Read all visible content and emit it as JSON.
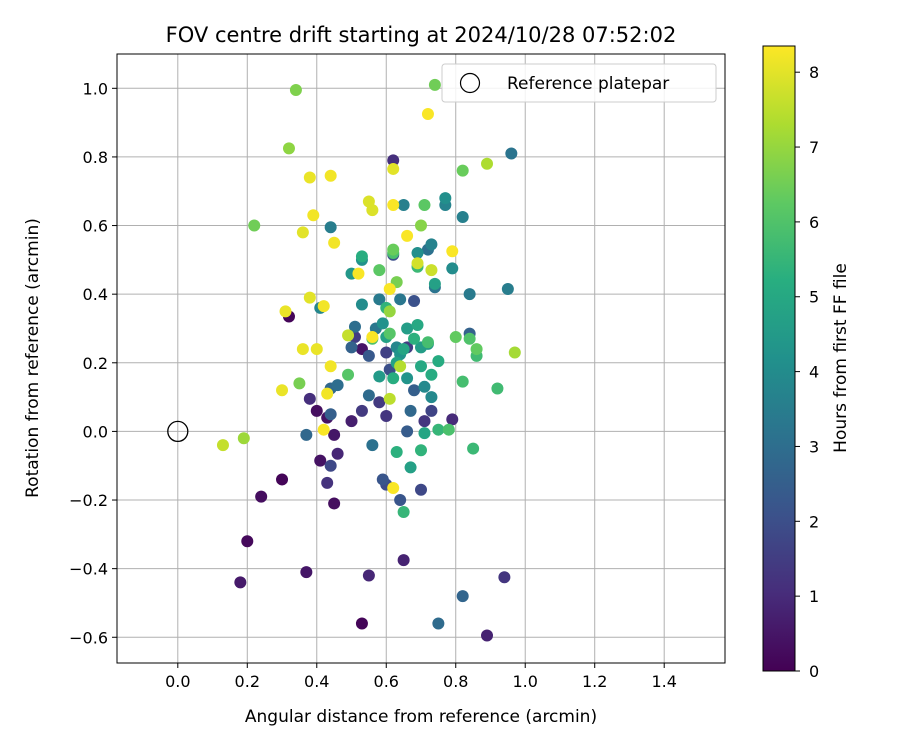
{
  "chart_data": {
    "type": "scatter",
    "title": "FOV centre drift starting at 2024/10/28 07:52:02",
    "xlabel": "Angular distance from reference (arcmin)",
    "ylabel": "Rotation from reference (arcmin)",
    "xlim": [
      -0.175,
      1.575
    ],
    "ylim": [
      -0.675,
      1.1
    ],
    "xticks": [
      0.0,
      0.2,
      0.4,
      0.6,
      0.8,
      1.0,
      1.2,
      1.4
    ],
    "yticks": [
      -0.6,
      -0.4,
      -0.2,
      0.0,
      0.2,
      0.4,
      0.6,
      0.8,
      1.0
    ],
    "xtick_labels": [
      "0.0",
      "0.2",
      "0.4",
      "0.6",
      "0.8",
      "1.0",
      "1.2",
      "1.4"
    ],
    "ytick_labels": [
      "−0.6",
      "−0.4",
      "−0.2",
      "0.0",
      "0.2",
      "0.4",
      "0.6",
      "0.8",
      "1.0"
    ],
    "grid": true,
    "legend": {
      "position": "top-right",
      "entries": [
        "Reference platepar"
      ]
    },
    "colorbar": {
      "label": "Hours from first FF file",
      "min": 0,
      "max": 8.35,
      "ticks": [
        0,
        1,
        2,
        3,
        4,
        5,
        6,
        7,
        8
      ],
      "tick_labels": [
        "0",
        "1",
        "2",
        "3",
        "4",
        "5",
        "6",
        "7",
        "8"
      ],
      "colormap": "viridis"
    },
    "reference_point": {
      "x": 0.0,
      "y": 0.0
    },
    "points": [
      {
        "x": 0.53,
        "y": -0.56,
        "h": 0.1
      },
      {
        "x": 0.32,
        "y": 0.335,
        "h": 0.1
      },
      {
        "x": 0.3,
        "y": -0.14,
        "h": 0.1
      },
      {
        "x": 0.2,
        "y": -0.32,
        "h": 0.2
      },
      {
        "x": 0.24,
        "y": -0.19,
        "h": 0.3
      },
      {
        "x": 0.4,
        "y": 0.06,
        "h": 0.3
      },
      {
        "x": 0.45,
        "y": -0.21,
        "h": 0.3
      },
      {
        "x": 0.41,
        "y": -0.085,
        "h": 0.4
      },
      {
        "x": 0.43,
        "y": 0.04,
        "h": 0.4
      },
      {
        "x": 0.45,
        "y": -0.01,
        "h": 0.5
      },
      {
        "x": 0.53,
        "y": 0.24,
        "h": 0.5
      },
      {
        "x": 0.37,
        "y": -0.41,
        "h": 0.5
      },
      {
        "x": 0.18,
        "y": -0.44,
        "h": 0.6
      },
      {
        "x": 0.5,
        "y": 0.03,
        "h": 0.7
      },
      {
        "x": 0.89,
        "y": -0.595,
        "h": 0.8
      },
      {
        "x": 0.65,
        "y": -0.375,
        "h": 0.8
      },
      {
        "x": 0.46,
        "y": -0.065,
        "h": 0.9
      },
      {
        "x": 0.55,
        "y": -0.42,
        "h": 0.9
      },
      {
        "x": 0.79,
        "y": 0.035,
        "h": 1.0
      },
      {
        "x": 0.62,
        "y": 0.79,
        "h": 1.1
      },
      {
        "x": 0.38,
        "y": 0.095,
        "h": 1.1
      },
      {
        "x": 0.43,
        "y": -0.15,
        "h": 1.2
      },
      {
        "x": 0.94,
        "y": -0.425,
        "h": 1.3
      },
      {
        "x": 0.6,
        "y": 0.045,
        "h": 1.3
      },
      {
        "x": 0.71,
        "y": 0.03,
        "h": 1.3
      },
      {
        "x": 0.53,
        "y": 0.06,
        "h": 1.4
      },
      {
        "x": 0.58,
        "y": 0.085,
        "h": 1.4
      },
      {
        "x": 0.66,
        "y": 0.245,
        "h": 1.5
      },
      {
        "x": 0.51,
        "y": 0.275,
        "h": 1.5
      },
      {
        "x": 0.6,
        "y": 0.23,
        "h": 1.6
      },
      {
        "x": 0.73,
        "y": 0.06,
        "h": 1.7
      },
      {
        "x": 0.44,
        "y": -0.1,
        "h": 1.8
      },
      {
        "x": 0.7,
        "y": -0.17,
        "h": 1.8
      },
      {
        "x": 0.6,
        "y": -0.155,
        "h": 1.9
      },
      {
        "x": 0.62,
        "y": 0.515,
        "h": 2.0
      },
      {
        "x": 0.61,
        "y": 0.18,
        "h": 2.0
      },
      {
        "x": 0.68,
        "y": 0.38,
        "h": 2.1
      },
      {
        "x": 0.64,
        "y": -0.2,
        "h": 2.2
      },
      {
        "x": 0.59,
        "y": -0.14,
        "h": 2.2
      },
      {
        "x": 0.55,
        "y": 0.22,
        "h": 2.3
      },
      {
        "x": 0.66,
        "y": 0.0,
        "h": 2.4
      },
      {
        "x": 0.44,
        "y": 0.05,
        "h": 2.5
      },
      {
        "x": 0.68,
        "y": 0.12,
        "h": 2.5
      },
      {
        "x": 0.5,
        "y": 0.245,
        "h": 2.6
      },
      {
        "x": 0.84,
        "y": 0.285,
        "h": 2.6
      },
      {
        "x": 0.82,
        "y": -0.48,
        "h": 2.7
      },
      {
        "x": 0.37,
        "y": -0.01,
        "h": 2.8
      },
      {
        "x": 0.44,
        "y": 0.125,
        "h": 2.8
      },
      {
        "x": 0.67,
        "y": 0.06,
        "h": 2.8
      },
      {
        "x": 0.55,
        "y": 0.105,
        "h": 2.9
      },
      {
        "x": 0.75,
        "y": -0.56,
        "h": 2.9
      },
      {
        "x": 0.46,
        "y": 0.135,
        "h": 3.0
      },
      {
        "x": 0.51,
        "y": 0.305,
        "h": 3.0
      },
      {
        "x": 0.72,
        "y": 0.53,
        "h": 3.1
      },
      {
        "x": 0.56,
        "y": -0.04,
        "h": 3.1
      },
      {
        "x": 0.74,
        "y": 0.42,
        "h": 3.2
      },
      {
        "x": 0.96,
        "y": 0.81,
        "h": 3.2
      },
      {
        "x": 0.57,
        "y": 0.3,
        "h": 3.3
      },
      {
        "x": 0.64,
        "y": 0.385,
        "h": 3.3
      },
      {
        "x": 0.84,
        "y": 0.4,
        "h": 3.4
      },
      {
        "x": 0.58,
        "y": 0.385,
        "h": 3.4
      },
      {
        "x": 0.44,
        "y": 0.595,
        "h": 3.5
      },
      {
        "x": 0.95,
        "y": 0.415,
        "h": 3.5
      },
      {
        "x": 0.82,
        "y": 0.625,
        "h": 3.6
      },
      {
        "x": 0.65,
        "y": 0.66,
        "h": 3.6
      },
      {
        "x": 0.77,
        "y": 0.66,
        "h": 3.7
      },
      {
        "x": 0.73,
        "y": 0.545,
        "h": 3.7
      },
      {
        "x": 0.41,
        "y": 0.36,
        "h": 3.8
      },
      {
        "x": 0.63,
        "y": 0.245,
        "h": 3.8
      },
      {
        "x": 0.73,
        "y": 0.1,
        "h": 3.9
      },
      {
        "x": 0.71,
        "y": 0.13,
        "h": 3.9
      },
      {
        "x": 0.53,
        "y": 0.37,
        "h": 4.0
      },
      {
        "x": 0.79,
        "y": 0.475,
        "h": 4.0
      },
      {
        "x": 0.77,
        "y": 0.68,
        "h": 4.1
      },
      {
        "x": 0.69,
        "y": 0.52,
        "h": 4.1
      },
      {
        "x": 0.53,
        "y": 0.5,
        "h": 4.2
      },
      {
        "x": 0.59,
        "y": 0.315,
        "h": 4.2
      },
      {
        "x": 0.64,
        "y": 0.225,
        "h": 4.3
      },
      {
        "x": 0.66,
        "y": 0.155,
        "h": 4.3
      },
      {
        "x": 0.5,
        "y": 0.46,
        "h": 4.4
      },
      {
        "x": 0.72,
        "y": 0.255,
        "h": 4.4
      },
      {
        "x": 0.58,
        "y": 0.16,
        "h": 4.5
      },
      {
        "x": 0.7,
        "y": 0.245,
        "h": 4.6
      },
      {
        "x": 0.66,
        "y": 0.3,
        "h": 4.6
      },
      {
        "x": 0.74,
        "y": 0.43,
        "h": 4.7
      },
      {
        "x": 0.67,
        "y": -0.105,
        "h": 4.7
      },
      {
        "x": 0.6,
        "y": 0.275,
        "h": 4.8
      },
      {
        "x": 0.63,
        "y": 0.2,
        "h": 4.8
      },
      {
        "x": 0.65,
        "y": 0.24,
        "h": 4.9
      },
      {
        "x": 0.71,
        "y": -0.005,
        "h": 4.9
      },
      {
        "x": 0.69,
        "y": 0.31,
        "h": 5.0
      },
      {
        "x": 0.7,
        "y": 0.19,
        "h": 5.0
      },
      {
        "x": 0.73,
        "y": 0.165,
        "h": 5.1
      },
      {
        "x": 0.75,
        "y": 0.205,
        "h": 5.1
      },
      {
        "x": 0.62,
        "y": 0.155,
        "h": 5.2
      },
      {
        "x": 0.53,
        "y": 0.51,
        "h": 5.2
      },
      {
        "x": 0.63,
        "y": -0.06,
        "h": 5.3
      },
      {
        "x": 0.68,
        "y": 0.27,
        "h": 5.3
      },
      {
        "x": 0.6,
        "y": 0.36,
        "h": 5.4
      },
      {
        "x": 0.7,
        "y": -0.055,
        "h": 5.4
      },
      {
        "x": 0.65,
        "y": -0.235,
        "h": 5.5
      },
      {
        "x": 0.75,
        "y": 0.005,
        "h": 5.5
      },
      {
        "x": 0.69,
        "y": 0.48,
        "h": 5.6
      },
      {
        "x": 0.85,
        "y": -0.05,
        "h": 5.6
      },
      {
        "x": 0.86,
        "y": 0.22,
        "h": 5.7
      },
      {
        "x": 0.92,
        "y": 0.125,
        "h": 5.7
      },
      {
        "x": 0.82,
        "y": 0.145,
        "h": 5.8
      },
      {
        "x": 0.72,
        "y": 0.26,
        "h": 5.8
      },
      {
        "x": 0.62,
        "y": 0.52,
        "h": 5.9
      },
      {
        "x": 0.78,
        "y": 0.005,
        "h": 5.9
      },
      {
        "x": 0.56,
        "y": 0.27,
        "h": 6.0
      },
      {
        "x": 0.84,
        "y": 0.27,
        "h": 6.0
      },
      {
        "x": 0.61,
        "y": 0.285,
        "h": 6.1
      },
      {
        "x": 0.49,
        "y": 0.165,
        "h": 6.1
      },
      {
        "x": 0.58,
        "y": 0.47,
        "h": 6.2
      },
      {
        "x": 0.71,
        "y": 0.66,
        "h": 6.2
      },
      {
        "x": 0.86,
        "y": 0.24,
        "h": 6.3
      },
      {
        "x": 0.8,
        "y": 0.275,
        "h": 6.3
      },
      {
        "x": 0.82,
        "y": 0.76,
        "h": 6.4
      },
      {
        "x": 0.62,
        "y": 0.53,
        "h": 6.4
      },
      {
        "x": 0.22,
        "y": 0.6,
        "h": 6.5
      },
      {
        "x": 0.74,
        "y": 1.01,
        "h": 6.5
      },
      {
        "x": 0.63,
        "y": 0.435,
        "h": 6.6
      },
      {
        "x": 0.35,
        "y": 0.14,
        "h": 6.6
      },
      {
        "x": 0.34,
        "y": 0.995,
        "h": 6.7
      },
      {
        "x": 0.7,
        "y": 0.6,
        "h": 6.8
      },
      {
        "x": 0.32,
        "y": 0.825,
        "h": 6.9
      },
      {
        "x": 0.61,
        "y": 0.35,
        "h": 7.0
      },
      {
        "x": 0.19,
        "y": -0.02,
        "h": 7.1
      },
      {
        "x": 0.97,
        "y": 0.23,
        "h": 7.2
      },
      {
        "x": 0.89,
        "y": 0.78,
        "h": 7.3
      },
      {
        "x": 0.64,
        "y": 0.19,
        "h": 7.4
      },
      {
        "x": 0.61,
        "y": 0.095,
        "h": 7.5
      },
      {
        "x": 0.49,
        "y": 0.28,
        "h": 7.6
      },
      {
        "x": 0.13,
        "y": -0.04,
        "h": 7.6
      },
      {
        "x": 0.73,
        "y": 0.47,
        "h": 7.7
      },
      {
        "x": 0.69,
        "y": 0.49,
        "h": 7.8
      },
      {
        "x": 0.55,
        "y": 0.67,
        "h": 7.9
      },
      {
        "x": 0.56,
        "y": 0.645,
        "h": 7.9
      },
      {
        "x": 0.62,
        "y": 0.765,
        "h": 8.0
      },
      {
        "x": 0.36,
        "y": 0.58,
        "h": 8.0
      },
      {
        "x": 0.38,
        "y": 0.39,
        "h": 8.0
      },
      {
        "x": 0.36,
        "y": 0.24,
        "h": 8.1
      },
      {
        "x": 0.4,
        "y": 0.24,
        "h": 8.1
      },
      {
        "x": 0.31,
        "y": 0.35,
        "h": 8.1
      },
      {
        "x": 0.3,
        "y": 0.12,
        "h": 8.1
      },
      {
        "x": 0.38,
        "y": 0.74,
        "h": 8.1
      },
      {
        "x": 0.39,
        "y": 0.63,
        "h": 8.2
      },
      {
        "x": 0.44,
        "y": 0.745,
        "h": 8.2
      },
      {
        "x": 0.45,
        "y": 0.55,
        "h": 8.2
      },
      {
        "x": 0.42,
        "y": 0.365,
        "h": 8.2
      },
      {
        "x": 0.44,
        "y": 0.19,
        "h": 8.2
      },
      {
        "x": 0.43,
        "y": 0.11,
        "h": 8.2
      },
      {
        "x": 0.42,
        "y": 0.005,
        "h": 8.3
      },
      {
        "x": 0.52,
        "y": 0.46,
        "h": 8.3
      },
      {
        "x": 0.61,
        "y": 0.415,
        "h": 8.3
      },
      {
        "x": 0.62,
        "y": 0.66,
        "h": 8.3
      },
      {
        "x": 0.66,
        "y": 0.57,
        "h": 8.3
      },
      {
        "x": 0.72,
        "y": 0.925,
        "h": 8.3
      },
      {
        "x": 0.62,
        "y": -0.165,
        "h": 8.3
      },
      {
        "x": 0.79,
        "y": 0.525,
        "h": 8.3
      },
      {
        "x": 0.56,
        "y": 0.275,
        "h": 8.3
      }
    ]
  }
}
